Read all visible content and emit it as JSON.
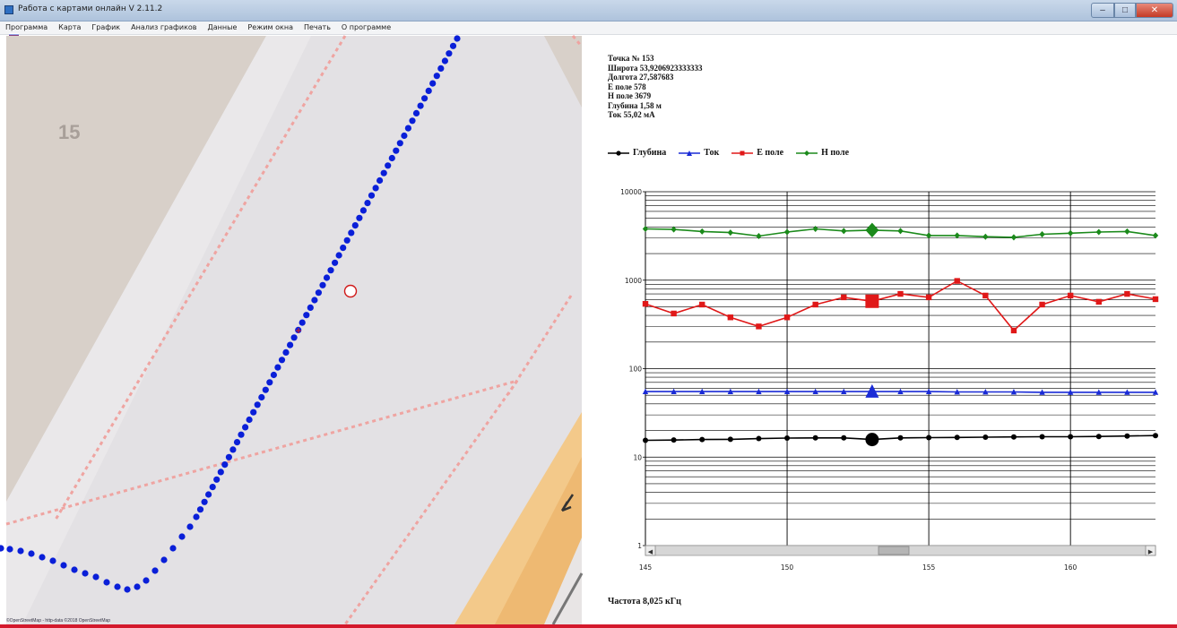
{
  "window": {
    "title": "Работа с картами онлайн V 2.11.2",
    "icon": "app-icon",
    "controls": [
      "minimize-icon",
      "maximize-icon",
      "close-icon"
    ]
  },
  "menu": {
    "items": [
      "Программа",
      "Карта",
      "График",
      "Анализ графиков",
      "Данные",
      "Режим окна",
      "Печать",
      "О программе"
    ]
  },
  "map": {
    "block_label": "15",
    "attribution": "©OpenStreetMap - http-data ©2018 OpenStreetMap"
  },
  "point_info": {
    "point": "Точка № 153",
    "lat": "Широта 53,9206923333333",
    "lon": "Долгота 27,587683",
    "e_field": "Е поле 578",
    "h_field": "Н поле 3679",
    "depth": "Глубина 1,58 м",
    "current": "Ток 55,02 мА"
  },
  "legend": [
    {
      "label": "Глубина",
      "color": "#000000",
      "marker": "circle"
    },
    {
      "label": "Ток",
      "color": "#1a2bd6",
      "marker": "triangle"
    },
    {
      "label": "Е поле",
      "color": "#e01818",
      "marker": "square"
    },
    {
      "label": "Н поле",
      "color": "#1b8a1b",
      "marker": "diamond"
    }
  ],
  "frequency": "Частота 8,025 кГц",
  "chart_data": {
    "type": "line",
    "yscale": "log",
    "ylim": [
      1,
      10000
    ],
    "y_tick_labels": [
      "1",
      "10",
      "100",
      "1000",
      "10000"
    ],
    "xlim": [
      145,
      163
    ],
    "x_tick_labels": [
      "145",
      "150",
      "155",
      "160"
    ],
    "x": [
      145,
      146,
      147,
      148,
      149,
      150,
      151,
      152,
      153,
      154,
      155,
      156,
      157,
      158,
      159,
      160,
      161,
      162,
      163
    ],
    "highlight_x": 153,
    "series": [
      {
        "name": "Н поле",
        "color": "#1b8a1b",
        "marker": "diamond",
        "values": [
          3800,
          3750,
          3550,
          3450,
          3150,
          3500,
          3800,
          3600,
          3679,
          3600,
          3200,
          3200,
          3100,
          3050,
          3300,
          3400,
          3500,
          3550,
          3200
        ]
      },
      {
        "name": "Е поле",
        "color": "#e01818",
        "marker": "square",
        "values": [
          540,
          420,
          530,
          380,
          300,
          380,
          530,
          640,
          578,
          700,
          640,
          980,
          670,
          270,
          530,
          670,
          570,
          700,
          610
        ]
      },
      {
        "name": "Ток",
        "color": "#1a2bd6",
        "marker": "triangle",
        "values": [
          55,
          55,
          55,
          55,
          55,
          55,
          55,
          55,
          55.02,
          55,
          55,
          54.5,
          54.5,
          54.5,
          54,
          54,
          54,
          54,
          54
        ]
      },
      {
        "name": "Глубина",
        "color": "#000000",
        "marker": "circle",
        "values": [
          15.5,
          15.6,
          15.8,
          15.9,
          16.2,
          16.4,
          16.5,
          16.5,
          15.8,
          16.5,
          16.6,
          16.7,
          16.8,
          16.9,
          17.0,
          17.0,
          17.1,
          17.3,
          17.5
        ]
      }
    ]
  },
  "scrollbar": {
    "left_arrow": "◀",
    "right_arrow": "▶"
  }
}
